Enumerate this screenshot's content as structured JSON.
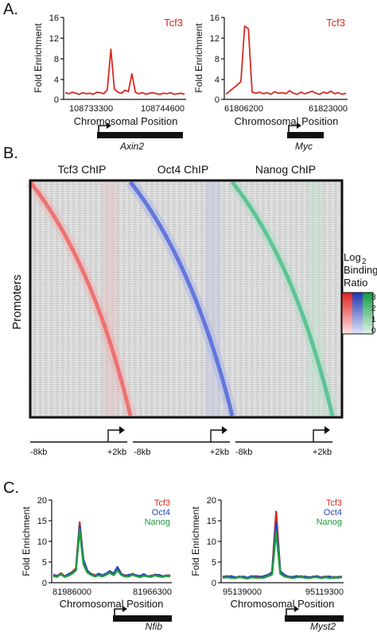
{
  "panels": {
    "a": {
      "label": "A.",
      "plots": [
        {
          "ylabel": "Fold Enrichment",
          "legend": "Tcf3",
          "yticks": [
            "0",
            "4",
            "8",
            "12",
            "16"
          ],
          "xticks": [
            "108733300",
            "108744600"
          ],
          "xlabel": "Chromosomal Position",
          "gene": "Axin2"
        },
        {
          "ylabel": "Fold Enrichment",
          "legend": "Tcf3",
          "yticks": [
            "0",
            "4",
            "8",
            "12",
            "16"
          ],
          "xticks": [
            "61806200",
            "61823000"
          ],
          "xlabel": "Chromosomal Position",
          "gene": "Myc"
        }
      ]
    },
    "b": {
      "label": "B.",
      "col_titles": [
        "Tcf3 ChIP",
        "Oct4 ChIP",
        "Nanog ChIP"
      ],
      "ylabel": "Promoters",
      "legend_title_1": "Log",
      "legend_title_sub": "2",
      "legend_title_2": "Binding",
      "legend_title_3": "Ratio",
      "legend_ticks": [
        "3",
        "2",
        "1",
        "0"
      ],
      "axis_left": "-8kb",
      "axis_right": "+2kb",
      "colors": {
        "tcf3": "#e23a3a",
        "oct4": "#2c48c8",
        "nanog": "#1fa86a"
      }
    },
    "c": {
      "label": "C.",
      "plots": [
        {
          "ylabel": "Fold Enrichment",
          "legend": [
            "Tcf3",
            "Oct4",
            "Nanog"
          ],
          "yticks": [
            "0",
            "5",
            "10",
            "15",
            "20"
          ],
          "xticks": [
            "81986000",
            "81966300"
          ],
          "xlabel": "Chromosomal Position",
          "gene": "Nfib"
        },
        {
          "ylabel": "Fold Enrichment",
          "legend": [
            "Tcf3",
            "Oct4",
            "Nanog"
          ],
          "yticks": [
            "0",
            "5",
            "10",
            "15",
            "20"
          ],
          "xticks": [
            "95139000",
            "95119300"
          ],
          "xlabel": "Chromosomal Position",
          "gene": "Myst2"
        }
      ]
    }
  },
  "chart_data": [
    {
      "type": "line",
      "panel": "A-left",
      "xlabel": "Chromosomal Position",
      "ylabel": "Fold Enrichment",
      "ylim": [
        0,
        16
      ],
      "series": [
        {
          "name": "Tcf3",
          "values": [
            1.3,
            1.1,
            1.4,
            1.2,
            1.0,
            1.3,
            1.1,
            1.2,
            1.0,
            1.4,
            1.3,
            1.1,
            1.9,
            9.8,
            2.0,
            1.4,
            1.2,
            1.8,
            1.5,
            5.0,
            1.4,
            1.1,
            1.3,
            1.0,
            1.2,
            1.3,
            1.1,
            1.0,
            1.2,
            1.1,
            1.3,
            1.0,
            1.1,
            1.2,
            1.0
          ]
        }
      ]
    },
    {
      "type": "line",
      "panel": "A-right",
      "xlabel": "Chromosomal Position",
      "ylabel": "Fold Enrichment",
      "ylim": [
        0,
        16
      ],
      "series": [
        {
          "name": "Tcf3",
          "values": [
            1.0,
            1.6,
            2.2,
            2.8,
            3.5,
            14.3,
            13.8,
            1.4,
            1.2,
            1.4,
            1.1,
            1.3,
            1.0,
            1.5,
            1.2,
            1.3,
            1.1,
            1.7,
            1.2,
            1.0,
            1.4,
            1.1,
            1.3,
            1.6,
            1.2,
            1.0,
            1.4,
            1.2,
            1.6,
            1.1,
            1.3,
            1.0,
            1.2
          ]
        }
      ]
    },
    {
      "type": "line",
      "panel": "C-left",
      "xlabel": "Chromosomal Position",
      "ylabel": "Fold Enrichment",
      "ylim": [
        0,
        20
      ],
      "series": [
        {
          "name": "Tcf3",
          "values": [
            2.0,
            1.5,
            2.3,
            1.6,
            1.9,
            2.6,
            3.5,
            14.6,
            5.0,
            2.8,
            2.2,
            1.8,
            2.0,
            1.6,
            2.0,
            2.6,
            1.9,
            3.5,
            2.0,
            1.8,
            1.6,
            2.2,
            1.7,
            1.5,
            1.9,
            1.6,
            1.5,
            2.0,
            1.7,
            1.5,
            1.8,
            1.6
          ]
        },
        {
          "name": "Oct4",
          "values": [
            1.8,
            1.7,
            2.0,
            1.5,
            2.1,
            2.4,
            3.2,
            13.8,
            5.6,
            3.0,
            2.0,
            1.6,
            2.2,
            1.8,
            2.2,
            2.8,
            2.2,
            3.8,
            2.2,
            1.6,
            1.9,
            2.0,
            1.8,
            1.6,
            2.1,
            1.5,
            1.7,
            1.8,
            1.9,
            1.6,
            1.6,
            1.8
          ]
        },
        {
          "name": "Nanog",
          "values": [
            1.6,
            1.4,
            2.1,
            1.4,
            1.7,
            2.2,
            3.0,
            12.8,
            4.5,
            2.5,
            1.9,
            1.5,
            1.8,
            1.5,
            1.9,
            2.4,
            1.8,
            3.0,
            1.9,
            1.5,
            1.5,
            1.9,
            1.6,
            1.3,
            1.7,
            1.5,
            1.4,
            1.8,
            1.5,
            1.4,
            1.6,
            1.5
          ]
        }
      ]
    },
    {
      "type": "line",
      "panel": "C-right",
      "xlabel": "Chromosomal Position",
      "ylabel": "Fold Enrichment",
      "ylim": [
        0,
        20
      ],
      "series": [
        {
          "name": "Tcf3",
          "values": [
            1.3,
            1.6,
            1.4,
            1.2,
            1.5,
            1.3,
            1.1,
            1.4,
            1.6,
            1.5,
            1.3,
            1.8,
            2.6,
            17.2,
            2.6,
            1.7,
            1.5,
            1.2,
            1.4,
            1.6,
            1.3,
            1.2,
            1.5,
            1.4,
            1.3,
            1.5,
            1.2,
            1.4,
            1.3,
            1.5
          ]
        },
        {
          "name": "Oct4",
          "values": [
            1.5,
            1.4,
            1.6,
            1.3,
            1.3,
            1.5,
            1.2,
            1.6,
            1.4,
            1.3,
            1.6,
            1.9,
            2.4,
            14.6,
            2.8,
            1.9,
            1.4,
            1.4,
            1.6,
            1.3,
            1.5,
            1.3,
            1.4,
            1.6,
            1.2,
            1.4,
            1.5,
            1.2,
            1.4,
            1.3
          ]
        },
        {
          "name": "Nanog",
          "values": [
            1.2,
            1.3,
            1.2,
            1.1,
            1.4,
            1.2,
            1.0,
            1.3,
            1.2,
            1.2,
            1.2,
            1.6,
            2.0,
            12.4,
            2.2,
            1.5,
            1.3,
            1.1,
            1.3,
            1.4,
            1.2,
            1.1,
            1.3,
            1.3,
            1.1,
            1.3,
            1.1,
            1.3,
            1.2,
            1.3
          ]
        }
      ]
    }
  ]
}
